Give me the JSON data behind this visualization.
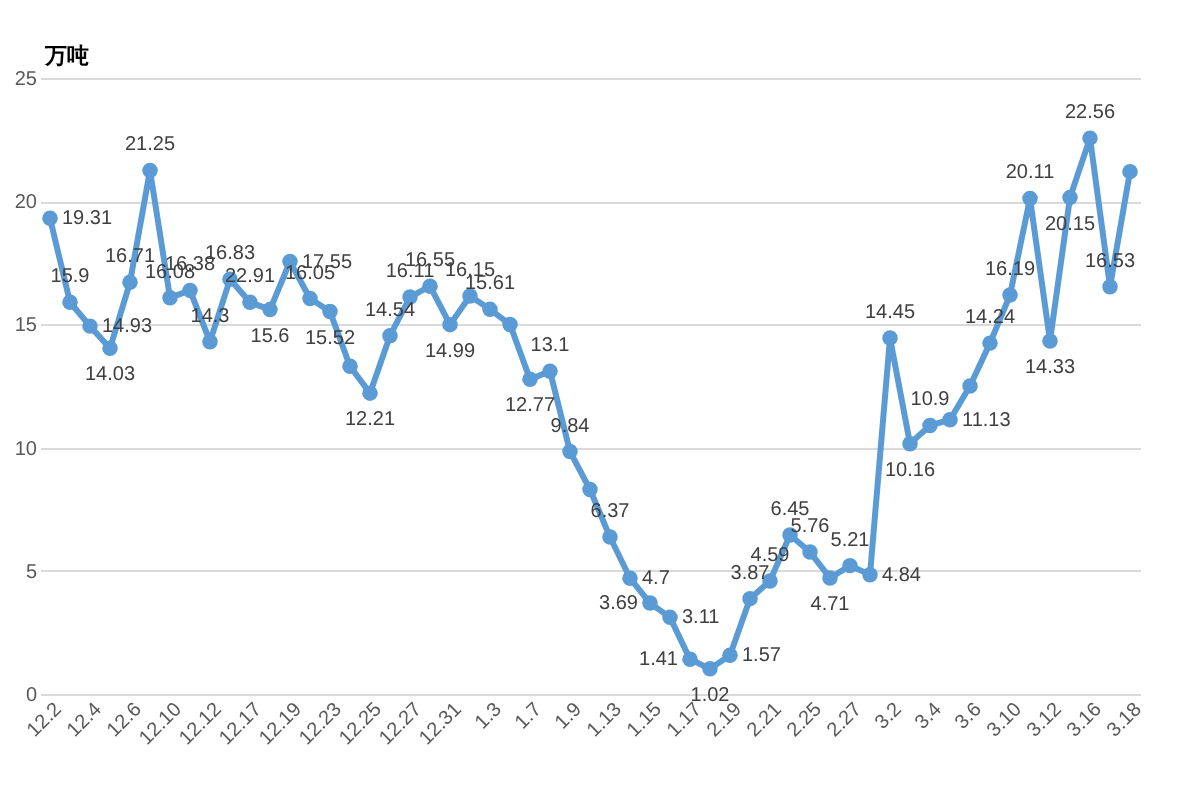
{
  "chart_data": {
    "type": "line",
    "ylabel": "万吨",
    "categories": [
      "12.2",
      null,
      "12.4",
      null,
      "12.6",
      null,
      "12.10",
      null,
      "12.12",
      null,
      "12.17",
      null,
      "12.19",
      null,
      "12.23",
      null,
      "12.25",
      null,
      "12.27",
      null,
      "12.31",
      null,
      "1.3",
      null,
      "1.7",
      null,
      "1.9",
      null,
      "1.13",
      null,
      "1.15",
      null,
      "1.17",
      null,
      "2.19",
      null,
      "2.21",
      null,
      "2.25",
      null,
      "2.27",
      null,
      "3.2",
      null,
      "3.4",
      null,
      "3.6",
      null,
      "3.10",
      null,
      "3.12",
      null,
      "3.16",
      null,
      "3.18"
    ],
    "series": [
      {
        "color": "#5b9bd5",
        "values": [
          19.31,
          15.9,
          14.93,
          14.03,
          16.71,
          21.25,
          16.08,
          16.38,
          14.3,
          16.83,
          15.9,
          15.6,
          17.55,
          16.05,
          15.52,
          13.3,
          12.21,
          14.54,
          16.11,
          16.55,
          14.99,
          16.15,
          15.61,
          15.0,
          12.77,
          13.1,
          9.84,
          8.3,
          6.37,
          4.7,
          3.69,
          3.11,
          1.41,
          1.02,
          1.57,
          3.87,
          4.59,
          6.45,
          5.76,
          4.71,
          5.21,
          4.84,
          14.45,
          10.16,
          10.9,
          11.13,
          12.5,
          14.24,
          16.19,
          20.11,
          14.33,
          20.15,
          22.56,
          16.53,
          21.2
        ],
        "value_labels": [
          "19.31",
          "15.9",
          "14.93",
          "14.03",
          "16.71",
          "21.25",
          "16.08",
          "16.38",
          "14.3",
          "16.83",
          null,
          "15.6",
          "17.55",
          "16.05",
          "15.52",
          null,
          "12.21",
          "14.54",
          "16.11",
          "16.55",
          "14.99",
          "16.15",
          "15.61",
          null,
          "12.77",
          "13.1",
          "9.84",
          null,
          "6.37",
          "4.7",
          "3.69",
          "3.11",
          "1.41",
          "1.02",
          "1.57",
          "3.87",
          "4.59",
          "6.45",
          "5.76",
          "4.71",
          "5.21",
          "4.84",
          "14.45",
          "10.16",
          "10.9",
          "11.13",
          null,
          "14.24",
          "16.19",
          "20.11",
          "14.33",
          "20.15",
          "22.56",
          "16.53",
          null
        ]
      }
    ],
    "ylim": [
      0,
      25
    ],
    "yticks": [
      0,
      5,
      10,
      15,
      20,
      25
    ],
    "annotations": [
      {
        "text": "22.91",
        "x": "12.17",
        "y": 15.9
      }
    ],
    "grid": "y",
    "marker": "circle",
    "line_style": "solid"
  }
}
